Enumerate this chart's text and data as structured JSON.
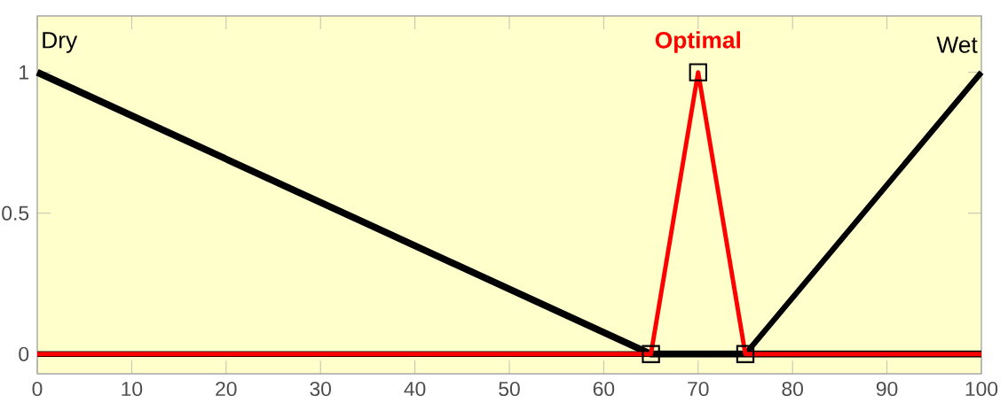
{
  "chart_data": {
    "type": "line",
    "xlim": [
      0,
      100
    ],
    "ylim": [
      -0.07,
      1.2
    ],
    "xticks": [
      0,
      10,
      20,
      30,
      40,
      50,
      60,
      70,
      80,
      90,
      100
    ],
    "yticks": [
      0,
      0.5,
      1
    ],
    "grid": false,
    "legend": false,
    "series": [
      {
        "name": "Dry",
        "color": "#000000",
        "x": [
          0,
          65,
          100
        ],
        "values": [
          1,
          0,
          0
        ]
      },
      {
        "name": "Wet",
        "color": "#000000",
        "x": [
          0,
          75,
          100
        ],
        "values": [
          0,
          0,
          1
        ]
      },
      {
        "name": "Optimal",
        "color": "#ff0000",
        "x": [
          0,
          65,
          70,
          75,
          100
        ],
        "values": [
          0,
          0,
          1,
          0,
          0
        ]
      },
      {
        "type": "scatter",
        "marker": "square",
        "color": "#000000",
        "x": [
          65,
          70,
          75
        ],
        "values": [
          0,
          1,
          0
        ]
      }
    ]
  }
}
